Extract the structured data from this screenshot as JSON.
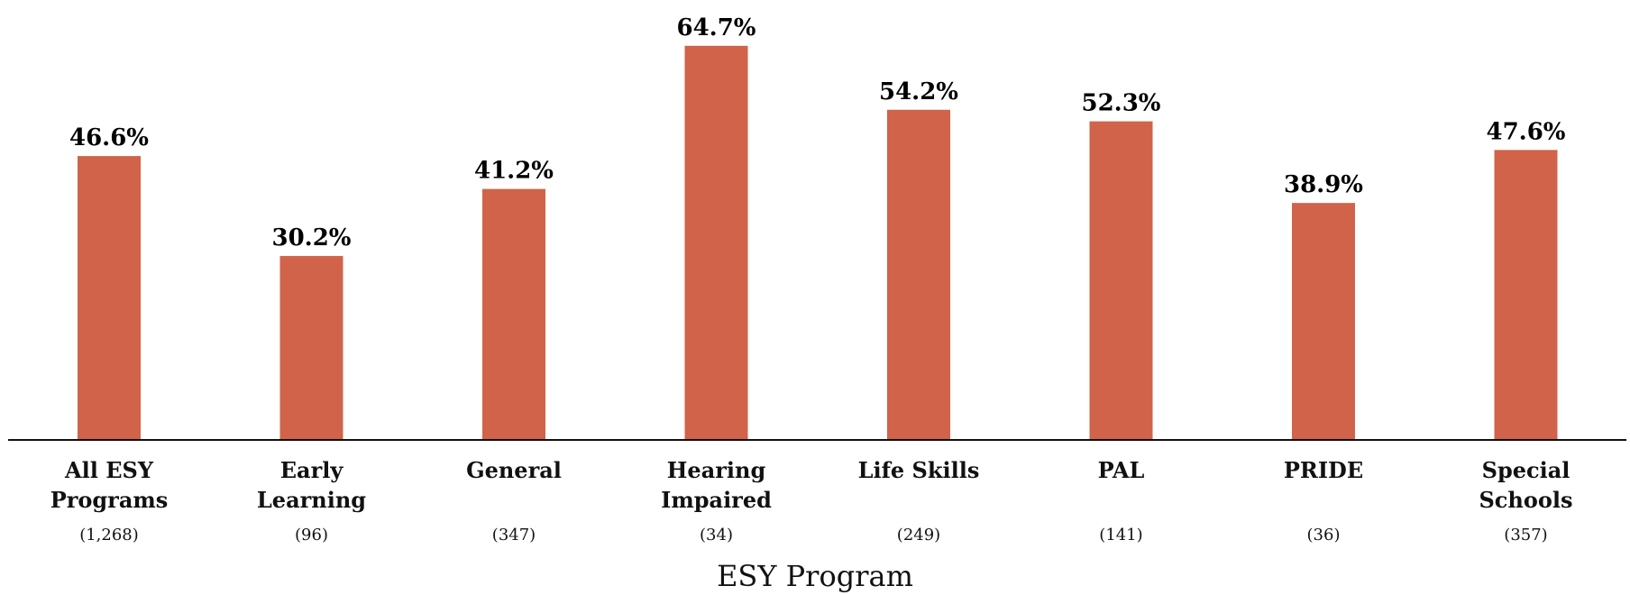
{
  "chart_data": {
    "type": "bar",
    "categories": [
      "All ESY Programs",
      "Early Learning",
      "General",
      "Hearing Impaired",
      "Life Skills",
      "PAL",
      "PRIDE",
      "Special Schools"
    ],
    "counts": [
      "(1,268)",
      "(96)",
      "(347)",
      "(34)",
      "(249)",
      "(141)",
      "(36)",
      "(357)"
    ],
    "values": [
      46.6,
      30.2,
      41.2,
      64.7,
      54.2,
      52.3,
      38.9,
      47.6
    ],
    "value_labels": [
      "46.6%",
      "30.2%",
      "41.2%",
      "64.7%",
      "54.2%",
      "52.3%",
      "38.9%",
      "47.6%"
    ],
    "color": "#d06349",
    "ylim": [
      0,
      70
    ],
    "xlabel": "ESY Program"
  }
}
